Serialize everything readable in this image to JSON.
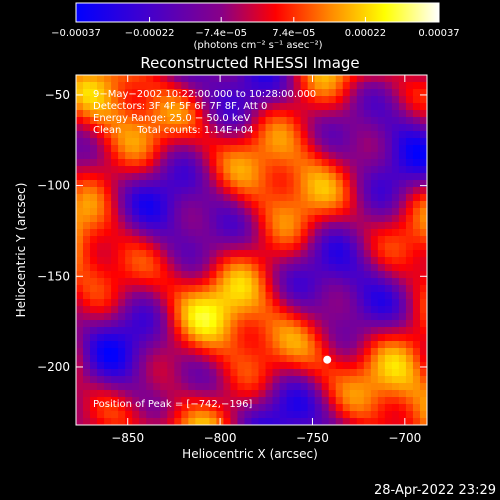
{
  "chart_data": {
    "type": "heatmap",
    "title": "Reconstructed RHESSI Image",
    "xlabel": "Heliocentric X (arcsec)",
    "ylabel": "Heliocentric Y (arcsec)",
    "xlim": [
      -878,
      -688
    ],
    "ylim": [
      -232,
      -39
    ],
    "x_ticks": [
      -850,
      -800,
      -750,
      -700
    ],
    "y_ticks": [
      -50,
      -100,
      -150,
      -200
    ],
    "x_tick_labels": [
      "−850",
      "−800",
      "−750",
      "−700"
    ],
    "y_tick_labels": [
      "−50",
      "−100",
      "−150",
      "−200"
    ],
    "colorbar": {
      "range": [
        -0.00037,
        0.00037
      ],
      "ticks": [
        -0.00037,
        -0.00022,
        -7.4e-05,
        7.4e-05,
        0.00022,
        0.00037
      ],
      "tick_labels": [
        "−0.00037",
        "−0.00022",
        "−7.4e−05",
        "7.4e−05",
        "0.00022",
        "0.00037"
      ],
      "units": "(photons cm⁻² s⁻¹ asec⁻²)",
      "colormap": [
        "#0000ff",
        "#4400cc",
        "#880088",
        "#ff0000",
        "#ff8800",
        "#ffff00",
        "#ffffff"
      ]
    },
    "annotations": [
      "9−May−2002 10:22:00.000 to 10:28:00.000",
      "Detectors: 3F 4F 5F 6F 7F 8F, Att 0",
      "Energy Range: 25.0 − 50.0 keV",
      "Clean     Total counts: 1.14E+04"
    ],
    "peak_label": "Position of Peak = [−742,−196]",
    "peak": [
      -742,
      -196
    ]
  },
  "timestamp": "28-Apr-2022 23:29"
}
